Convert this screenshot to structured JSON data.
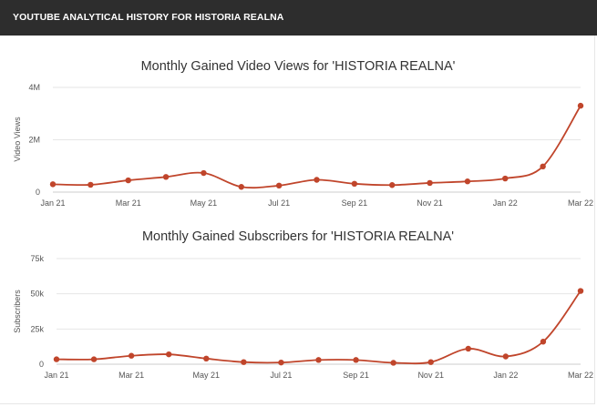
{
  "header": {
    "title": "YOUTUBE ANALYTICAL HISTORY FOR HISTORIA REALNA"
  },
  "chart_data": [
    {
      "type": "line",
      "title": "Monthly Gained Video Views for 'HISTORIA REALNA'",
      "xlabel": "",
      "ylabel": "Video Views",
      "x": [
        "Jan 21",
        "Feb 21",
        "Mar 21",
        "Apr 21",
        "May 21",
        "Jun 21",
        "Jul 21",
        "Aug 21",
        "Sep 21",
        "Oct 21",
        "Nov 21",
        "Dec 21",
        "Jan 22",
        "Feb 22",
        "Mar 22"
      ],
      "x_tick_labels": [
        "Jan 21",
        "Mar 21",
        "May 21",
        "Jul 21",
        "Sep 21",
        "Nov 21",
        "Jan 22",
        "Mar 22"
      ],
      "values": [
        300000,
        280000,
        450000,
        580000,
        730000,
        200000,
        250000,
        470000,
        320000,
        270000,
        350000,
        410000,
        520000,
        980000,
        3300000
      ],
      "ylim": [
        0,
        4000000
      ],
      "y_ticks": [
        0,
        2000000,
        4000000
      ],
      "y_tick_labels": [
        "0",
        "2M",
        "4M"
      ],
      "grid": true,
      "legend": "none",
      "color": "#c0452b"
    },
    {
      "type": "line",
      "title": "Monthly Gained Subscribers for 'HISTORIA REALNA'",
      "xlabel": "",
      "ylabel": "Subscribers",
      "x": [
        "Jan 21",
        "Feb 21",
        "Mar 21",
        "Apr 21",
        "May 21",
        "Jun 21",
        "Jul 21",
        "Aug 21",
        "Sep 21",
        "Oct 21",
        "Nov 21",
        "Dec 21",
        "Jan 22",
        "Feb 22",
        "Mar 22"
      ],
      "x_tick_labels": [
        "Jan 21",
        "Mar 21",
        "May 21",
        "Jul 21",
        "Sep 21",
        "Nov 21",
        "Jan 22",
        "Mar 22"
      ],
      "values": [
        3500,
        3500,
        6000,
        7000,
        4000,
        1500,
        1200,
        3000,
        3000,
        1000,
        1500,
        11000,
        5500,
        16000,
        52000
      ],
      "ylim": [
        0,
        75000
      ],
      "y_ticks": [
        0,
        25000,
        50000,
        75000
      ],
      "y_tick_labels": [
        "0",
        "25k",
        "50k",
        "75k"
      ],
      "grid": true,
      "legend": "none",
      "color": "#c0452b"
    }
  ]
}
